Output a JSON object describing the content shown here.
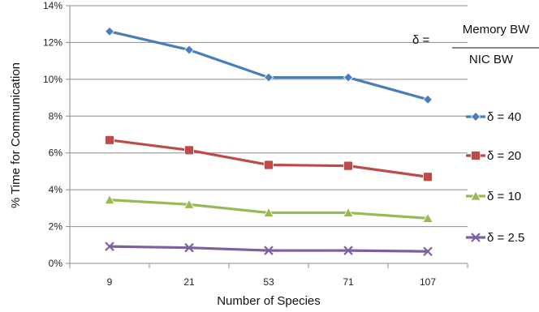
{
  "chart_data": {
    "type": "line",
    "title": "",
    "xlabel": "Number of Species",
    "ylabel": "% Time for Communication",
    "categories": [
      "9",
      "21",
      "53",
      "71",
      "107"
    ],
    "ylim": [
      0,
      14
    ],
    "y_ticks": [
      "0%",
      "2%",
      "4%",
      "6%",
      "8%",
      "10%",
      "12%",
      "14%"
    ],
    "grid": true,
    "legend_position": "right",
    "series": [
      {
        "name": "δ = 40",
        "values": [
          12.6,
          11.6,
          10.1,
          10.1,
          8.9
        ],
        "color": "#4a7ebb",
        "marker": "diamond"
      },
      {
        "name": "δ = 20",
        "values": [
          6.7,
          6.15,
          5.35,
          5.3,
          4.7
        ],
        "color": "#be4b48",
        "marker": "square"
      },
      {
        "name": "δ = 10",
        "values": [
          3.45,
          3.2,
          2.75,
          2.75,
          2.45
        ],
        "color": "#98b954",
        "marker": "triangle"
      },
      {
        "name": "δ = 2.5",
        "values": [
          0.92,
          0.85,
          0.7,
          0.7,
          0.65
        ],
        "color": "#7d60a0",
        "marker": "x"
      }
    ],
    "annotation": {
      "lhs": "δ =",
      "numerator": "Memory BW",
      "denominator": "NIC BW"
    }
  }
}
